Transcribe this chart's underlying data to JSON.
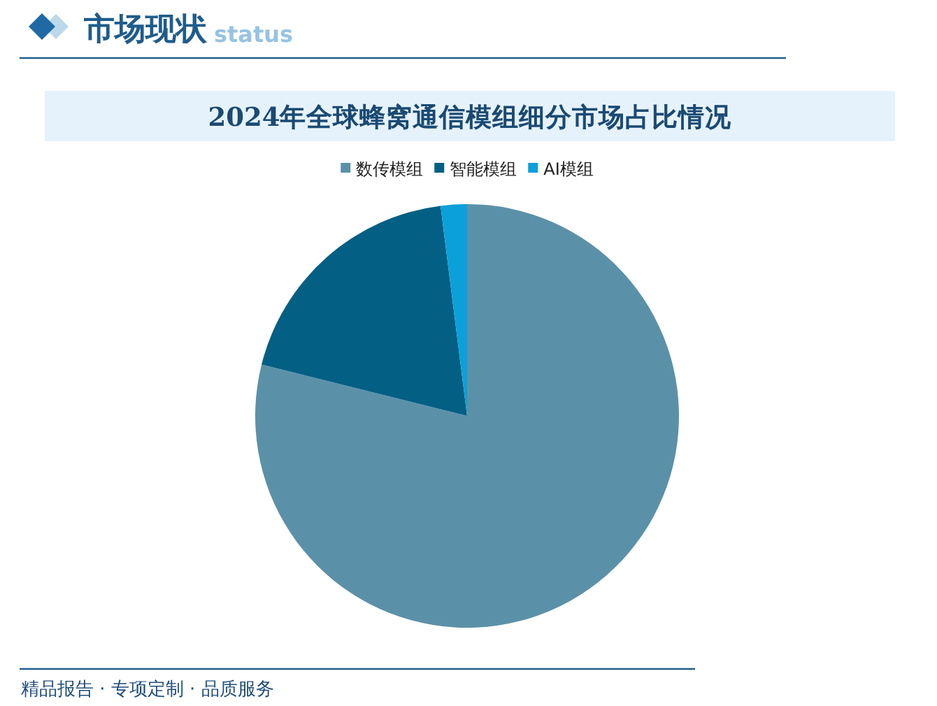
{
  "chart_data": {
    "type": "pie",
    "title": "2024年全球蜂窝通信模组细分市场占比情况",
    "categories": [
      "数传模组",
      "智能模组",
      "AI模组"
    ],
    "values": [
      78.9,
      19.1,
      2.0
    ],
    "colors": [
      "#5b91a8",
      "#035f83",
      "#0ba0da"
    ],
    "legend": "top",
    "annotations": [
      "市场现状",
      "status",
      "精品报告 · 专项定制 · 品质服务"
    ]
  }
}
